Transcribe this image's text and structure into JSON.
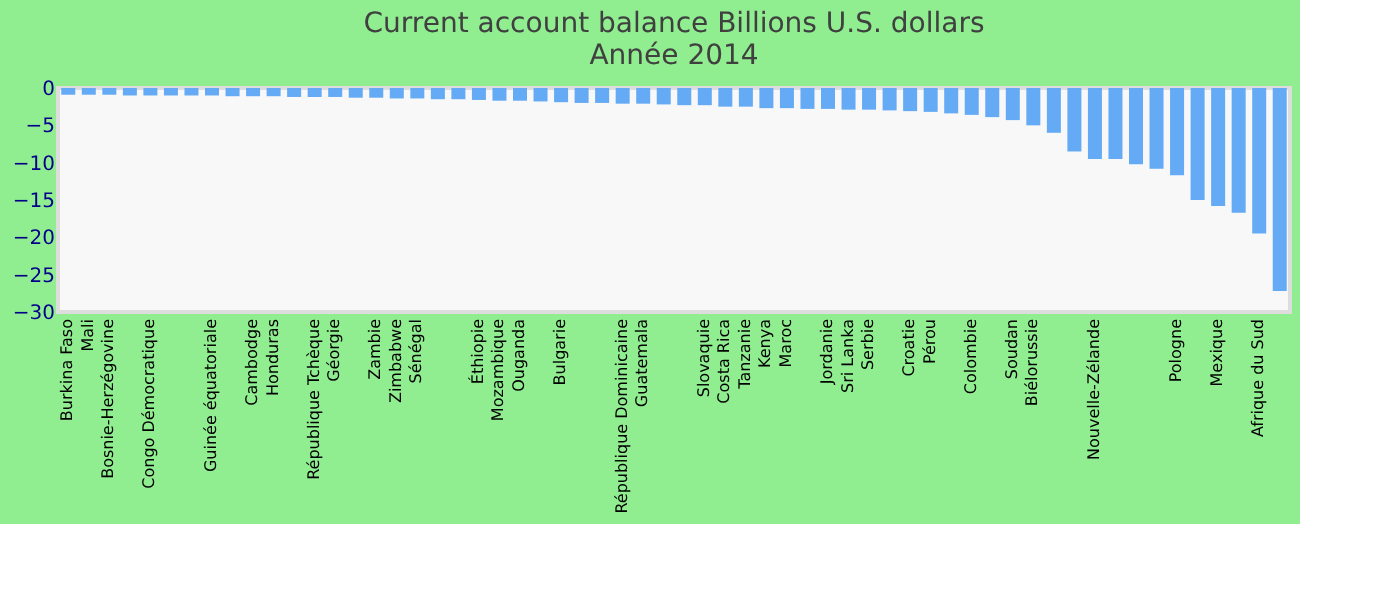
{
  "chart_data": {
    "type": "bar",
    "title": "Current account balance Billions U.S. dollars",
    "subtitle": "Année 2014",
    "categories": [
      "Burkina Faso",
      "Mali",
      "Bosnie-Herzégovine",
      null,
      "Congo Démocratique",
      null,
      null,
      "Guinée équatoriale",
      null,
      "Cambodge",
      "Honduras",
      null,
      "République Tchèque",
      "Géorgie",
      null,
      "Zambie",
      "Zimbabwe",
      "Sénégal",
      null,
      null,
      "Éthiopie",
      "Mozambique",
      "Ouganda",
      null,
      "Bulgarie",
      null,
      null,
      "République Dominicaine",
      "Guatemala",
      null,
      null,
      "Slovaquie",
      "Costa Rica",
      "Tanzanie",
      "Kenya",
      "Maroc",
      null,
      "Jordanie",
      "Sri Lanka",
      "Serbie",
      null,
      "Croatie",
      "Pérou",
      null,
      "Colombie",
      null,
      "Soudan",
      "Biélorussie",
      null,
      null,
      "Nouvelle-Zélande",
      null,
      null,
      null,
      "Pologne",
      null,
      "Mexique",
      null,
      "Afrique du Sud",
      null
    ],
    "values": [
      -0.9,
      -0.9,
      -0.9,
      -1.0,
      -1.0,
      -1.0,
      -1.0,
      -1.0,
      -1.1,
      -1.1,
      -1.1,
      -1.2,
      -1.2,
      -1.2,
      -1.3,
      -1.3,
      -1.4,
      -1.4,
      -1.5,
      -1.5,
      -1.6,
      -1.7,
      -1.7,
      -1.8,
      -1.9,
      -2.0,
      -2.0,
      -2.1,
      -2.1,
      -2.2,
      -2.3,
      -2.3,
      -2.5,
      -2.5,
      -2.7,
      -2.7,
      -2.8,
      -2.8,
      -2.9,
      -2.9,
      -3.0,
      -3.1,
      -3.2,
      -3.4,
      -3.6,
      -3.9,
      -4.3,
      -5.0,
      -6.0,
      -8.5,
      -9.5,
      -9.5,
      -10.2,
      -10.8,
      -11.7,
      -15.0,
      -15.8,
      -16.7,
      -19.5,
      -27.2
    ],
    "color": "#64aaf4",
    "ylim": [
      -30,
      0
    ],
    "yticks": [
      -30,
      -25,
      -20,
      -15,
      -10,
      -5,
      0
    ],
    "grid": false
  }
}
